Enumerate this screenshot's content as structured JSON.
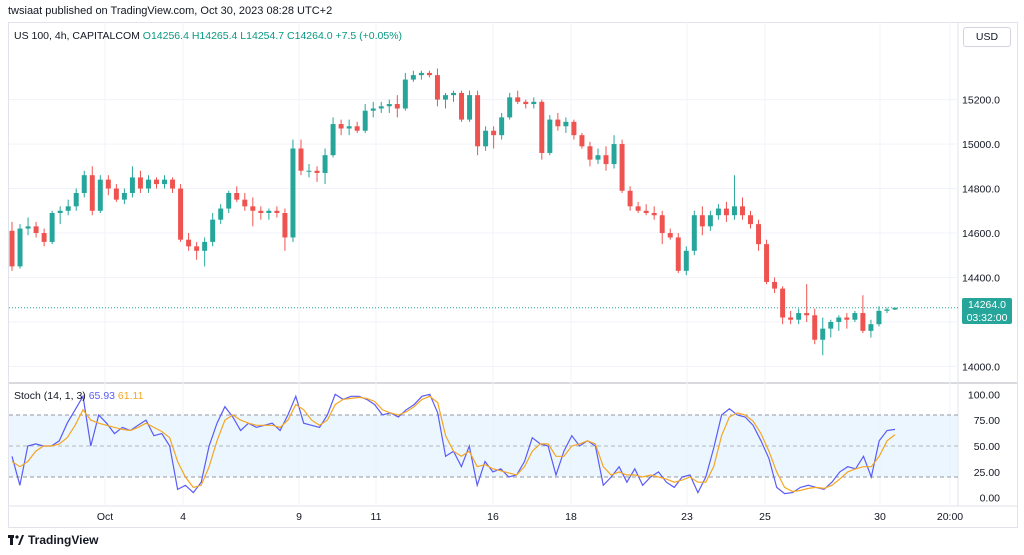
{
  "header": {
    "published": "twsiaat published on TradingView.com, Oct 30, 2023 08:28 UTC+2"
  },
  "legend": {
    "symbol": "US 100, 4h, CAPITALCOM",
    "open": "O14256.4",
    "high": "H14265.4",
    "low": "L14254.7",
    "close": "C14264.0",
    "change": "+7.5 (+0.05%)"
  },
  "currency": "USD",
  "last_price": {
    "value": "14264.0",
    "countdown": "03:32:00"
  },
  "stoch_legend": {
    "name": "Stoch (14, 1, 3)",
    "k": "65.93",
    "d": "61.11"
  },
  "footer": {
    "brand": "TradingView",
    "logo_icon": "tradingview-logo-icon"
  },
  "colors": {
    "up": "#26a69a",
    "down": "#ef5350",
    "k_line": "#5b5cf6",
    "d_line": "#f5a623",
    "band": "#e3f2fd"
  },
  "chart_data": [
    {
      "type": "candlestick",
      "title": "US 100, 4h, CAPITALCOM",
      "y_ticks": [
        14000,
        14200,
        14400,
        14600,
        14800,
        15000,
        15200
      ],
      "y_tick_labels": [
        "14000.0",
        "",
        "14400.0",
        "14600.0",
        "14800.0",
        "15000.0",
        "15200.0"
      ],
      "x_tick_labels": [
        "Oct",
        "4",
        "9",
        "11",
        "16",
        "18",
        "23",
        "25",
        "30",
        "20:00"
      ],
      "ylim": [
        13930,
        15450
      ],
      "last_price": 14264.0,
      "ohlc": [
        [
          14610,
          14650,
          14430,
          14450
        ],
        [
          14450,
          14640,
          14440,
          14620
        ],
        [
          14620,
          14670,
          14590,
          14630
        ],
        [
          14630,
          14650,
          14580,
          14600
        ],
        [
          14600,
          14620,
          14540,
          14560
        ],
        [
          14560,
          14700,
          14550,
          14690
        ],
        [
          14690,
          14720,
          14640,
          14700
        ],
        [
          14700,
          14750,
          14680,
          14720
        ],
        [
          14720,
          14800,
          14700,
          14780
        ],
        [
          14780,
          14880,
          14760,
          14860
        ],
        [
          14860,
          14900,
          14680,
          14700
        ],
        [
          14700,
          14860,
          14690,
          14840
        ],
        [
          14840,
          14860,
          14770,
          14800
        ],
        [
          14800,
          14820,
          14740,
          14750
        ],
        [
          14750,
          14800,
          14730,
          14780
        ],
        [
          14780,
          14900,
          14760,
          14850
        ],
        [
          14850,
          14880,
          14780,
          14800
        ],
        [
          14800,
          14860,
          14780,
          14840
        ],
        [
          14840,
          14850,
          14800,
          14820
        ],
        [
          14820,
          14860,
          14800,
          14840
        ],
        [
          14840,
          14850,
          14780,
          14800
        ],
        [
          14800,
          14820,
          14560,
          14570
        ],
        [
          14570,
          14600,
          14520,
          14540
        ],
        [
          14540,
          14560,
          14480,
          14520
        ],
        [
          14520,
          14580,
          14450,
          14560
        ],
        [
          14560,
          14690,
          14540,
          14660
        ],
        [
          14660,
          14730,
          14640,
          14710
        ],
        [
          14710,
          14790,
          14690,
          14780
        ],
        [
          14780,
          14810,
          14740,
          14750
        ],
        [
          14750,
          14780,
          14700,
          14720
        ],
        [
          14720,
          14760,
          14630,
          14700
        ],
        [
          14700,
          14720,
          14660,
          14690
        ],
        [
          14690,
          14710,
          14660,
          14700
        ],
        [
          14700,
          14720,
          14670,
          14690
        ],
        [
          14690,
          14710,
          14520,
          14580
        ],
        [
          14580,
          15020,
          14560,
          14980
        ],
        [
          14980,
          15020,
          14860,
          14880
        ],
        [
          14880,
          14910,
          14850,
          14880
        ],
        [
          14880,
          14900,
          14830,
          14870
        ],
        [
          14870,
          14980,
          14820,
          14950
        ],
        [
          14950,
          15120,
          14940,
          15090
        ],
        [
          15090,
          15110,
          15040,
          15070
        ],
        [
          15070,
          15110,
          15040,
          15080
        ],
        [
          15080,
          15100,
          15050,
          15060
        ],
        [
          15060,
          15180,
          15050,
          15150
        ],
        [
          15150,
          15190,
          15120,
          15160
        ],
        [
          15160,
          15190,
          15140,
          15170
        ],
        [
          15170,
          15200,
          15140,
          15180
        ],
        [
          15180,
          15220,
          15120,
          15160
        ],
        [
          15160,
          15320,
          15150,
          15290
        ],
        [
          15290,
          15330,
          15280,
          15310
        ],
        [
          15310,
          15330,
          15290,
          15320
        ],
        [
          15320,
          15330,
          15300,
          15310
        ],
        [
          15310,
          15340,
          15170,
          15200
        ],
        [
          15200,
          15230,
          15160,
          15220
        ],
        [
          15220,
          15240,
          15190,
          15230
        ],
        [
          15230,
          15240,
          15100,
          15110
        ],
        [
          15110,
          15240,
          15100,
          15220
        ],
        [
          15220,
          15240,
          14950,
          14990
        ],
        [
          14990,
          15080,
          14970,
          15060
        ],
        [
          15060,
          15080,
          14980,
          15040
        ],
        [
          15040,
          15140,
          15020,
          15120
        ],
        [
          15120,
          15230,
          15110,
          15210
        ],
        [
          15210,
          15240,
          15180,
          15190
        ],
        [
          15190,
          15200,
          15160,
          15180
        ],
        [
          15180,
          15210,
          15160,
          15190
        ],
        [
          15190,
          15200,
          14930,
          14960
        ],
        [
          14960,
          15130,
          14950,
          15110
        ],
        [
          15110,
          15140,
          15060,
          15080
        ],
        [
          15080,
          15120,
          15050,
          15100
        ],
        [
          15100,
          15110,
          15020,
          15040
        ],
        [
          15040,
          15050,
          14980,
          14990
        ],
        [
          14990,
          15010,
          14900,
          14930
        ],
        [
          14930,
          14980,
          14910,
          14950
        ],
        [
          14950,
          14990,
          14880,
          14910
        ],
        [
          14910,
          15040,
          14890,
          15000
        ],
        [
          15000,
          15020,
          14780,
          14790
        ],
        [
          14790,
          14810,
          14700,
          14720
        ],
        [
          14720,
          14740,
          14690,
          14700
        ],
        [
          14700,
          14730,
          14680,
          14690
        ],
        [
          14690,
          14720,
          14660,
          14680
        ],
        [
          14680,
          14700,
          14550,
          14600
        ],
        [
          14600,
          14620,
          14570,
          14580
        ],
        [
          14580,
          14600,
          14420,
          14430
        ],
        [
          14430,
          14540,
          14410,
          14520
        ],
        [
          14520,
          14700,
          14500,
          14680
        ],
        [
          14680,
          14720,
          14590,
          14630
        ],
        [
          14630,
          14700,
          14610,
          14680
        ],
        [
          14680,
          14730,
          14660,
          14710
        ],
        [
          14710,
          14740,
          14650,
          14680
        ],
        [
          14680,
          14860,
          14660,
          14720
        ],
        [
          14720,
          14760,
          14660,
          14680
        ],
        [
          14680,
          14700,
          14620,
          14640
        ],
        [
          14640,
          14660,
          14520,
          14550
        ],
        [
          14550,
          14570,
          14370,
          14380
        ],
        [
          14380,
          14400,
          14330,
          14350
        ],
        [
          14350,
          14360,
          14190,
          14220
        ],
        [
          14220,
          14250,
          14190,
          14210
        ],
        [
          14210,
          14260,
          14190,
          14240
        ],
        [
          14240,
          14370,
          14200,
          14230
        ],
        [
          14230,
          14260,
          14100,
          14120
        ],
        [
          14120,
          14220,
          14050,
          14170
        ],
        [
          14170,
          14210,
          14130,
          14200
        ],
        [
          14200,
          14230,
          14160,
          14220
        ],
        [
          14220,
          14240,
          14170,
          14210
        ],
        [
          14210,
          14250,
          14200,
          14240
        ],
        [
          14240,
          14320,
          14150,
          14160
        ],
        [
          14160,
          14210,
          14130,
          14190
        ],
        [
          14190,
          14270,
          14180,
          14250
        ],
        [
          14250,
          14265,
          14240,
          14256
        ],
        [
          14256,
          14265,
          14254,
          14264
        ]
      ]
    },
    {
      "type": "line",
      "title": "Stoch (14, 1, 3)",
      "y_ticks": [
        0,
        25,
        50,
        75,
        100
      ],
      "y_tick_labels": [
        "0.00",
        "25.00",
        "50.00",
        "75.00",
        "100.00"
      ],
      "bands": [
        20,
        80
      ],
      "ylim": [
        -8,
        108
      ],
      "series": [
        {
          "name": "%K",
          "values": [
            40,
            12,
            50,
            52,
            50,
            50,
            55,
            72,
            85,
            98,
            50,
            80,
            72,
            62,
            68,
            65,
            70,
            75,
            60,
            62,
            50,
            8,
            12,
            5,
            15,
            50,
            72,
            88,
            78,
            65,
            72,
            68,
            70,
            72,
            65,
            80,
            98,
            72,
            70,
            68,
            80,
            100,
            95,
            98,
            98,
            95,
            90,
            80,
            82,
            78,
            85,
            90,
            98,
            100,
            82,
            40,
            45,
            30,
            50,
            12,
            35,
            25,
            28,
            20,
            22,
            35,
            58,
            52,
            50,
            22,
            45,
            60,
            50,
            55,
            50,
            12,
            20,
            30,
            15,
            28,
            12,
            20,
            25,
            15,
            10,
            20,
            22,
            5,
            20,
            48,
            80,
            86,
            80,
            78,
            70,
            55,
            38,
            10,
            4,
            5,
            10,
            12,
            10,
            8,
            15,
            25,
            30,
            28,
            40,
            20,
            55,
            65,
            66
          ]
        },
        {
          "name": "%D",
          "values": [
            35,
            30,
            35,
            45,
            50,
            50,
            52,
            58,
            70,
            85,
            75,
            72,
            70,
            68,
            66,
            65,
            68,
            72,
            68,
            64,
            58,
            35,
            20,
            10,
            12,
            30,
            55,
            75,
            80,
            75,
            72,
            70,
            70,
            70,
            68,
            75,
            90,
            85,
            75,
            70,
            75,
            90,
            95,
            96,
            97,
            96,
            93,
            85,
            82,
            80,
            83,
            88,
            95,
            98,
            92,
            60,
            45,
            40,
            45,
            30,
            32,
            28,
            26,
            24,
            22,
            30,
            45,
            52,
            52,
            40,
            40,
            50,
            52,
            55,
            52,
            30,
            22,
            25,
            22,
            22,
            20,
            22,
            20,
            18,
            15,
            17,
            20,
            15,
            15,
            30,
            60,
            78,
            82,
            80,
            74,
            62,
            45,
            25,
            10,
            6,
            7,
            9,
            10,
            9,
            12,
            18,
            25,
            28,
            30,
            30,
            40,
            55,
            61
          ]
        }
      ]
    }
  ]
}
